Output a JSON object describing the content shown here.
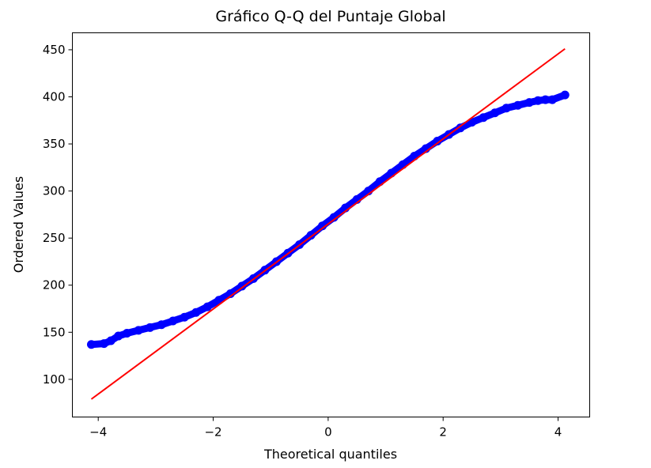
{
  "chart_data": {
    "type": "scatter",
    "title": "Gráfico Q-Q del Puntaje Global",
    "xlabel": "Theoretical quantiles",
    "ylabel": "Ordered Values",
    "xlim": [
      -4.45,
      4.55
    ],
    "ylim": [
      60,
      468
    ],
    "xticks": [
      -4,
      -2,
      0,
      2,
      4
    ],
    "xtick_labels": [
      "−4",
      "−2",
      "0",
      "2",
      "4"
    ],
    "yticks": [
      100,
      150,
      200,
      250,
      300,
      350,
      400,
      450
    ],
    "ytick_labels": [
      "100",
      "150",
      "200",
      "250",
      "300",
      "350",
      "400",
      "450"
    ],
    "grid": false,
    "series": [
      {
        "kind": "points",
        "color": "#0000ff",
        "x": [
          -4.12,
          -3.9,
          -3.78,
          -3.65,
          -3.5,
          -3.3,
          -3.1,
          -2.9,
          -2.7,
          -2.5,
          -2.3,
          -2.1,
          -1.9,
          -1.7,
          -1.5,
          -1.3,
          -1.1,
          -0.9,
          -0.7,
          -0.5,
          -0.3,
          -0.1,
          0.1,
          0.3,
          0.5,
          0.7,
          0.9,
          1.1,
          1.3,
          1.5,
          1.7,
          1.9,
          2.1,
          2.3,
          2.5,
          2.7,
          2.9,
          3.1,
          3.3,
          3.5,
          3.65,
          3.78,
          3.9,
          4.12
        ],
        "y": [
          137,
          138,
          141,
          146,
          149,
          152,
          155,
          158,
          162,
          166,
          171,
          177,
          184,
          191,
          199,
          207,
          216,
          225,
          234,
          243,
          253,
          263,
          272,
          282,
          291,
          300,
          310,
          319,
          328,
          337,
          345,
          353,
          360,
          367,
          373,
          378,
          383,
          388,
          391,
          394,
          396,
          397,
          397,
          402
        ]
      },
      {
        "kind": "line",
        "color": "#ff0000",
        "x": [
          -4.12,
          4.12
        ],
        "y": [
          79,
          451
        ]
      }
    ]
  }
}
